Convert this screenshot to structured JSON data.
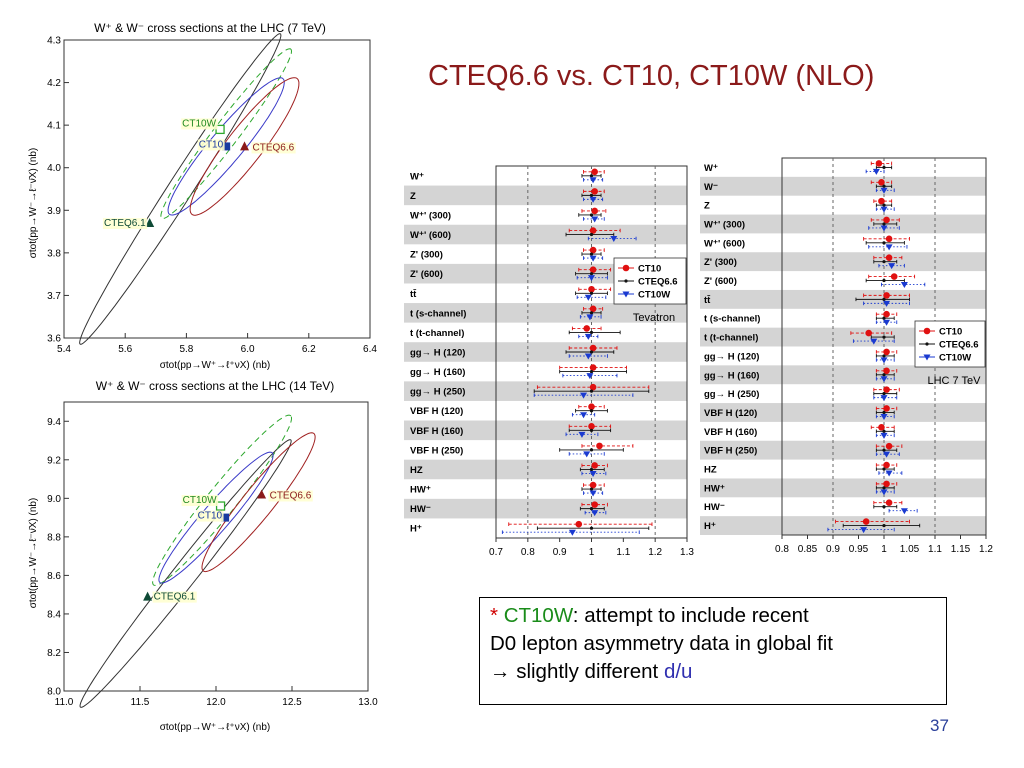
{
  "slide": {
    "title": "CTEQ6.6 vs. CT10, CT10W  (NLO)",
    "page_number": "37",
    "note": {
      "star": "*",
      "ct10w": "CT10W",
      "line1_rest": ": attempt to include recent",
      "line2": "D0 lepton asymmetry data in global fit",
      "arrow": "→",
      "line3_text": " slightly different ",
      "du": "d/u"
    }
  },
  "colors": {
    "title": "#8b1a1a",
    "ct10": "#3030b0",
    "cteq66": "#8b1a1a",
    "ct10w": "#2ea82e",
    "cteq61": "#0e4a36",
    "stripe": "#d4d4d4"
  },
  "chart_data": [
    {
      "type": "scatter",
      "title": "W⁺ & W⁻ cross sections at the LHC (7 TeV)",
      "xlabel": "σtot(pp→W⁺→ℓ⁺νX) (nb)",
      "ylabel": "σtot(pp→W⁻→ℓ⁻ν̄X) (nb)",
      "xlim": [
        5.4,
        6.4
      ],
      "ylim": [
        3.6,
        4.3
      ],
      "xticks": [
        5.4,
        5.6,
        5.8,
        6.0,
        6.2,
        6.4
      ],
      "yticks": [
        3.6,
        3.7,
        3.8,
        3.9,
        4.0,
        4.1,
        4.2,
        4.3
      ],
      "points": [
        {
          "name": "CT10W",
          "x": 5.91,
          "y": 4.09,
          "marker": "open-square",
          "color": "#2ea82e"
        },
        {
          "name": "CT10",
          "x": 5.93,
          "y": 4.05,
          "marker": "filled-square",
          "color": "#1a3aa0"
        },
        {
          "name": "CTEQ6.6",
          "x": 5.99,
          "y": 4.05,
          "marker": "triangle",
          "color": "#8b1a1a"
        },
        {
          "name": "CTEQ6.1",
          "x": 5.68,
          "y": 3.87,
          "marker": "triangle",
          "color": "#0e4a36"
        }
      ],
      "ellipses": [
        {
          "series": "CTEQ6.1",
          "cx": 5.78,
          "cy": 3.95,
          "a": 0.49,
          "b": 0.035,
          "angle_deg": 48,
          "color": "#333333",
          "dash": false
        },
        {
          "series": "CT10W",
          "cx": 5.93,
          "cy": 4.08,
          "a": 0.29,
          "b": 0.035,
          "angle_deg": 43,
          "color": "#2ea82e",
          "dash": true
        },
        {
          "series": "CT10",
          "cx": 5.93,
          "cy": 4.05,
          "a": 0.245,
          "b": 0.045,
          "angle_deg": 40,
          "color": "#3a3ac8",
          "dash": false
        },
        {
          "series": "CTEQ6.6",
          "cx": 5.99,
          "cy": 4.05,
          "a": 0.235,
          "b": 0.05,
          "angle_deg": 42,
          "color": "#a02020",
          "dash": false
        }
      ]
    },
    {
      "type": "scatter",
      "title": "W⁺ & W⁻ cross sections at the LHC (14 TeV)",
      "xlabel": "σtot(pp→W⁺→ℓ⁺νX) (nb)",
      "ylabel": "σtot(pp→W⁻→ℓ⁻ν̄X) (nb)",
      "xlim": [
        11.0,
        13.0
      ],
      "ylim": [
        8.0,
        9.5
      ],
      "xticks": [
        11.0,
        11.5,
        12.0,
        12.5,
        13.0
      ],
      "yticks": [
        8.0,
        8.2,
        8.4,
        8.6,
        8.8,
        9.0,
        9.2,
        9.4
      ],
      "points": [
        {
          "name": "CT10W",
          "x": 12.03,
          "y": 8.96,
          "marker": "open-square",
          "color": "#2ea82e"
        },
        {
          "name": "CT10",
          "x": 12.06,
          "y": 8.9,
          "marker": "filled-square",
          "color": "#1a3aa0"
        },
        {
          "name": "CTEQ6.6",
          "x": 12.3,
          "y": 9.02,
          "marker": "triangle",
          "color": "#8b1a1a"
        },
        {
          "name": "CTEQ6.1",
          "x": 11.55,
          "y": 8.49,
          "marker": "triangle",
          "color": "#0e4a36"
        }
      ],
      "ellipses": [
        {
          "series": "CTEQ6.1",
          "cx": 11.8,
          "cy": 8.61,
          "a": 0.98,
          "b": 0.07,
          "angle_deg": 45,
          "color": "#333333",
          "dash": false
        },
        {
          "series": "CT10W",
          "cx": 12.04,
          "cy": 8.99,
          "a": 0.63,
          "b": 0.085,
          "angle_deg": 44,
          "color": "#2ea82e",
          "dash": true
        },
        {
          "series": "CT10",
          "cx": 12.0,
          "cy": 8.9,
          "a": 0.5,
          "b": 0.08,
          "angle_deg": 42,
          "color": "#3a3ac8",
          "dash": false
        },
        {
          "series": "CTEQ6.6",
          "cx": 12.28,
          "cy": 8.98,
          "a": 0.51,
          "b": 0.09,
          "angle_deg": 44,
          "color": "#a02020",
          "dash": false
        }
      ]
    },
    {
      "type": "scatter",
      "panel": "Tevatron",
      "label": "Tevatron",
      "xlim": [
        0.7,
        1.3
      ],
      "xticks": [
        0.7,
        0.8,
        0.9,
        1.0,
        1.1,
        1.2,
        1.3
      ],
      "dashed_x": [
        0.8,
        1.0,
        1.2
      ],
      "legend": [
        "CT10",
        "CTEQ6.6",
        "CT10W"
      ],
      "legend_position": "right",
      "rows": [
        {
          "label": "W⁺",
          "ct10": [
            1.01,
            0.975,
            1.04
          ],
          "cteq66": [
            1.0,
            0.97,
            1.03
          ],
          "ct10w": [
            1.005,
            0.975,
            1.035
          ]
        },
        {
          "label": "Z",
          "ct10": [
            1.01,
            0.975,
            1.04
          ],
          "cteq66": [
            1.0,
            0.97,
            1.03
          ],
          "ct10w": [
            1.005,
            0.975,
            1.035
          ]
        },
        {
          "label": "W⁺' (300)",
          "ct10": [
            1.01,
            0.97,
            1.045
          ],
          "cteq66": [
            1.0,
            0.96,
            1.03
          ],
          "ct10w": [
            1.01,
            0.975,
            1.04
          ]
        },
        {
          "label": "W⁺' (600)",
          "ct10": [
            1.005,
            0.93,
            1.09
          ],
          "cteq66": [
            1.0,
            0.92,
            1.07
          ],
          "ct10w": [
            1.07,
            0.99,
            1.14
          ]
        },
        {
          "label": "Z' (300)",
          "ct10": [
            1.005,
            0.975,
            1.04
          ],
          "cteq66": [
            1.0,
            0.97,
            1.03
          ],
          "ct10w": [
            1.005,
            0.975,
            1.035
          ]
        },
        {
          "label": "Z' (600)",
          "ct10": [
            1.005,
            0.96,
            1.06
          ],
          "cteq66": [
            1.0,
            0.95,
            1.05
          ],
          "ct10w": [
            1.0,
            0.955,
            1.05
          ]
        },
        {
          "label": "tt̄",
          "ct10": [
            1.0,
            0.96,
            1.06
          ],
          "cteq66": [
            1.0,
            0.95,
            1.05
          ],
          "ct10w": [
            0.99,
            0.955,
            1.045
          ]
        },
        {
          "label": "t (s-channel)",
          "ct10": [
            1.005,
            0.975,
            1.035
          ],
          "cteq66": [
            1.0,
            0.97,
            1.03
          ],
          "ct10w": [
            0.995,
            0.965,
            1.03
          ]
        },
        {
          "label": "t (t-channel)",
          "ct10": [
            0.985,
            0.94,
            1.03
          ],
          "cteq66": [
            1.0,
            0.93,
            1.09
          ],
          "ct10w": [
            0.99,
            0.96,
            1.02
          ]
        },
        {
          "label": "gg→ H (120)",
          "ct10": [
            1.005,
            0.93,
            1.08
          ],
          "cteq66": [
            1.0,
            0.92,
            1.07
          ],
          "ct10w": [
            0.99,
            0.93,
            1.05
          ]
        },
        {
          "label": "gg→ H (160)",
          "ct10": [
            1.005,
            0.9,
            1.11
          ],
          "cteq66": [
            1.0,
            0.9,
            1.11
          ],
          "ct10w": [
            0.995,
            0.91,
            1.08
          ]
        },
        {
          "label": "gg→ H (250)",
          "ct10": [
            1.005,
            0.83,
            1.18
          ],
          "cteq66": [
            1.0,
            0.82,
            1.18
          ],
          "ct10w": [
            0.975,
            0.82,
            1.13
          ]
        },
        {
          "label": "VBF H (120)",
          "ct10": [
            1.0,
            0.96,
            1.04
          ],
          "cteq66": [
            1.0,
            0.95,
            1.05
          ],
          "ct10w": [
            0.975,
            0.94,
            1.01
          ]
        },
        {
          "label": "VBF H (160)",
          "ct10": [
            1.0,
            0.93,
            1.06
          ],
          "cteq66": [
            1.0,
            0.93,
            1.06
          ],
          "ct10w": [
            0.97,
            0.92,
            1.02
          ]
        },
        {
          "label": "VBF H (250)",
          "ct10": [
            1.025,
            0.97,
            1.13
          ],
          "cteq66": [
            1.0,
            0.9,
            1.1
          ],
          "ct10w": [
            0.985,
            0.93,
            1.04
          ]
        },
        {
          "label": "HZ",
          "ct10": [
            1.01,
            0.97,
            1.05
          ],
          "cteq66": [
            1.0,
            0.965,
            1.04
          ],
          "ct10w": [
            1.005,
            0.97,
            1.045
          ]
        },
        {
          "label": "HW⁺",
          "ct10": [
            1.005,
            0.975,
            1.04
          ],
          "cteq66": [
            1.0,
            0.97,
            1.03
          ],
          "ct10w": [
            1.005,
            0.975,
            1.035
          ]
        },
        {
          "label": "HW⁻",
          "ct10": [
            1.01,
            0.97,
            1.05
          ],
          "cteq66": [
            1.0,
            0.965,
            1.04
          ],
          "ct10w": [
            1.01,
            0.98,
            1.045
          ]
        },
        {
          "label": "H⁺",
          "ct10": [
            0.96,
            0.74,
            1.19
          ],
          "cteq66": [
            1.0,
            0.83,
            1.18
          ],
          "ct10w": [
            0.94,
            0.72,
            1.15
          ]
        }
      ]
    },
    {
      "type": "scatter",
      "panel": "LHC 7 TeV",
      "label": "LHC 7 TeV",
      "xlim": [
        0.8,
        1.2
      ],
      "xticks": [
        0.8,
        0.85,
        0.9,
        0.95,
        1.0,
        1.05,
        1.1,
        1.15,
        1.2
      ],
      "dashed_x": [
        0.9,
        1.0,
        1.1
      ],
      "legend": [
        "CT10",
        "CTEQ6.6",
        "CT10W"
      ],
      "legend_position": "right",
      "rows": [
        {
          "label": "W⁺",
          "ct10": [
            0.99,
            0.975,
            1.015
          ],
          "cteq66": [
            1.0,
            0.985,
            1.015
          ],
          "ct10w": [
            0.985,
            0.965,
            1.0
          ]
        },
        {
          "label": "W⁻",
          "ct10": [
            0.995,
            0.975,
            1.015
          ],
          "cteq66": [
            1.0,
            0.985,
            1.015
          ],
          "ct10w": [
            1.0,
            0.985,
            1.02
          ]
        },
        {
          "label": "Z",
          "ct10": [
            0.995,
            0.98,
            1.015
          ],
          "cteq66": [
            1.0,
            0.985,
            1.015
          ],
          "ct10w": [
            1.0,
            0.985,
            1.02
          ]
        },
        {
          "label": "W⁺' (300)",
          "ct10": [
            1.005,
            0.975,
            1.03
          ],
          "cteq66": [
            1.0,
            0.98,
            1.025
          ],
          "ct10w": [
            1.0,
            0.97,
            1.03
          ]
        },
        {
          "label": "W⁺' (600)",
          "ct10": [
            1.01,
            0.96,
            1.05
          ],
          "cteq66": [
            1.0,
            0.965,
            1.04
          ],
          "ct10w": [
            1.01,
            0.97,
            1.045
          ]
        },
        {
          "label": "Z' (300)",
          "ct10": [
            1.01,
            0.98,
            1.035
          ],
          "cteq66": [
            1.0,
            0.98,
            1.025
          ],
          "ct10w": [
            1.015,
            0.99,
            1.04
          ]
        },
        {
          "label": "Z' (600)",
          "ct10": [
            1.02,
            0.97,
            1.06
          ],
          "cteq66": [
            1.0,
            0.965,
            1.04
          ],
          "ct10w": [
            1.04,
            0.995,
            1.08
          ]
        },
        {
          "label": "tt̄",
          "ct10": [
            1.005,
            0.96,
            1.05
          ],
          "cteq66": [
            1.0,
            0.945,
            1.05
          ],
          "ct10w": [
            1.005,
            0.96,
            1.05
          ]
        },
        {
          "label": "t (s-channel)",
          "ct10": [
            1.005,
            0.985,
            1.025
          ],
          "cteq66": [
            1.0,
            0.985,
            1.02
          ],
          "ct10w": [
            1.005,
            0.985,
            1.025
          ]
        },
        {
          "label": "t (t-channel)",
          "ct10": [
            0.97,
            0.935,
            1.015
          ],
          "cteq66": [
            1.0,
            0.975,
            1.02
          ],
          "ct10w": [
            0.98,
            0.94,
            1.02
          ]
        },
        {
          "label": "gg→ H (120)",
          "ct10": [
            1.005,
            0.985,
            1.025
          ],
          "cteq66": [
            1.0,
            0.985,
            1.02
          ],
          "ct10w": [
            1.0,
            0.985,
            1.02
          ]
        },
        {
          "label": "gg→ H (160)",
          "ct10": [
            1.005,
            0.985,
            1.025
          ],
          "cteq66": [
            1.0,
            0.985,
            1.02
          ],
          "ct10w": [
            1.0,
            0.985,
            1.02
          ]
        },
        {
          "label": "gg→ H (250)",
          "ct10": [
            1.005,
            0.98,
            1.03
          ],
          "cteq66": [
            1.0,
            0.98,
            1.025
          ],
          "ct10w": [
            1.0,
            0.98,
            1.025
          ]
        },
        {
          "label": "VBF H (120)",
          "ct10": [
            1.005,
            0.985,
            1.025
          ],
          "cteq66": [
            1.0,
            0.985,
            1.02
          ],
          "ct10w": [
            1.0,
            0.985,
            1.02
          ]
        },
        {
          "label": "VBF H (160)",
          "ct10": [
            0.995,
            0.975,
            1.02
          ],
          "cteq66": [
            1.0,
            0.985,
            1.02
          ],
          "ct10w": [
            1.0,
            0.985,
            1.02
          ]
        },
        {
          "label": "VBF H (250)",
          "ct10": [
            1.01,
            0.985,
            1.035
          ],
          "cteq66": [
            1.0,
            0.985,
            1.025
          ],
          "ct10w": [
            1.005,
            0.985,
            1.03
          ]
        },
        {
          "label": "HZ",
          "ct10": [
            1.005,
            0.985,
            1.025
          ],
          "cteq66": [
            1.0,
            0.985,
            1.02
          ],
          "ct10w": [
            1.01,
            0.99,
            1.035
          ]
        },
        {
          "label": "HW⁺",
          "ct10": [
            1.005,
            0.985,
            1.025
          ],
          "cteq66": [
            1.0,
            0.985,
            1.02
          ],
          "ct10w": [
            1.0,
            0.985,
            1.02
          ]
        },
        {
          "label": "HW⁻",
          "ct10": [
            1.01,
            0.98,
            1.035
          ],
          "cteq66": [
            1.0,
            0.98,
            1.025
          ],
          "ct10w": [
            1.04,
            1.01,
            1.065
          ]
        },
        {
          "label": "H⁺",
          "ct10": [
            0.965,
            0.905,
            1.05
          ],
          "cteq66": [
            1.0,
            0.92,
            1.07
          ],
          "ct10w": [
            0.96,
            0.89,
            1.02
          ]
        }
      ]
    }
  ]
}
